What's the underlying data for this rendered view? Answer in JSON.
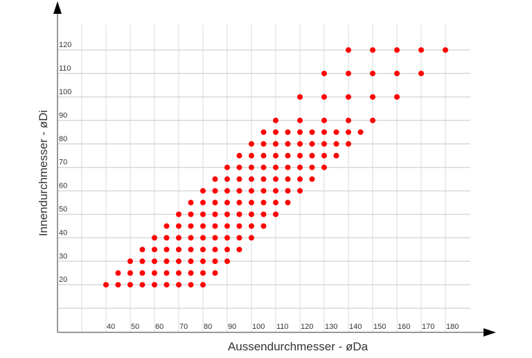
{
  "chart_data": {
    "type": "scatter",
    "title": "",
    "xlabel": "Aussendurchmesser - øDa",
    "ylabel": "Innendurchmesser - øDi",
    "xlim": [
      20,
      190
    ],
    "ylim": [
      0,
      130
    ],
    "grid": true,
    "x_ticks": [
      40,
      50,
      60,
      70,
      80,
      90,
      100,
      110,
      120,
      130,
      140,
      150,
      160,
      170,
      180
    ],
    "y_ticks": [
      20,
      30,
      40,
      50,
      60,
      70,
      80,
      90,
      100,
      110,
      120
    ],
    "color": "#ff0000",
    "rows": [
      {
        "y": 20,
        "x": [
          40,
          45,
          50,
          55,
          60,
          65,
          70,
          75,
          80
        ]
      },
      {
        "y": 25,
        "x": [
          45,
          50,
          55,
          60,
          65,
          70,
          75,
          80,
          85
        ]
      },
      {
        "y": 30,
        "x": [
          50,
          55,
          60,
          65,
          70,
          75,
          80,
          85,
          90
        ]
      },
      {
        "y": 35,
        "x": [
          55,
          60,
          65,
          70,
          75,
          80,
          85,
          90,
          95
        ]
      },
      {
        "y": 40,
        "x": [
          60,
          65,
          70,
          75,
          80,
          85,
          90,
          95,
          100
        ]
      },
      {
        "y": 45,
        "x": [
          65,
          70,
          75,
          80,
          85,
          90,
          95,
          100,
          105
        ]
      },
      {
        "y": 50,
        "x": [
          70,
          75,
          80,
          85,
          90,
          95,
          100,
          105,
          110
        ]
      },
      {
        "y": 55,
        "x": [
          75,
          80,
          85,
          90,
          95,
          100,
          105,
          110,
          115
        ]
      },
      {
        "y": 60,
        "x": [
          80,
          85,
          90,
          95,
          100,
          105,
          110,
          115,
          120
        ]
      },
      {
        "y": 65,
        "x": [
          85,
          90,
          95,
          100,
          105,
          110,
          115,
          120,
          125
        ]
      },
      {
        "y": 70,
        "x": [
          90,
          95,
          100,
          105,
          110,
          115,
          120,
          125,
          130
        ]
      },
      {
        "y": 75,
        "x": [
          95,
          100,
          105,
          110,
          115,
          120,
          125,
          130,
          135
        ]
      },
      {
        "y": 80,
        "x": [
          100,
          105,
          110,
          115,
          120,
          125,
          130,
          135,
          140
        ]
      },
      {
        "y": 85,
        "x": [
          105,
          110,
          115,
          120,
          125,
          130,
          135,
          140,
          145
        ]
      },
      {
        "y": 90,
        "x": [
          110,
          120,
          130,
          140,
          150
        ]
      },
      {
        "y": 100,
        "x": [
          120,
          130,
          140,
          150,
          160
        ]
      },
      {
        "y": 110,
        "x": [
          130,
          140,
          150,
          160,
          170
        ]
      },
      {
        "y": 120,
        "x": [
          140,
          150,
          160,
          170,
          180
        ]
      }
    ]
  }
}
